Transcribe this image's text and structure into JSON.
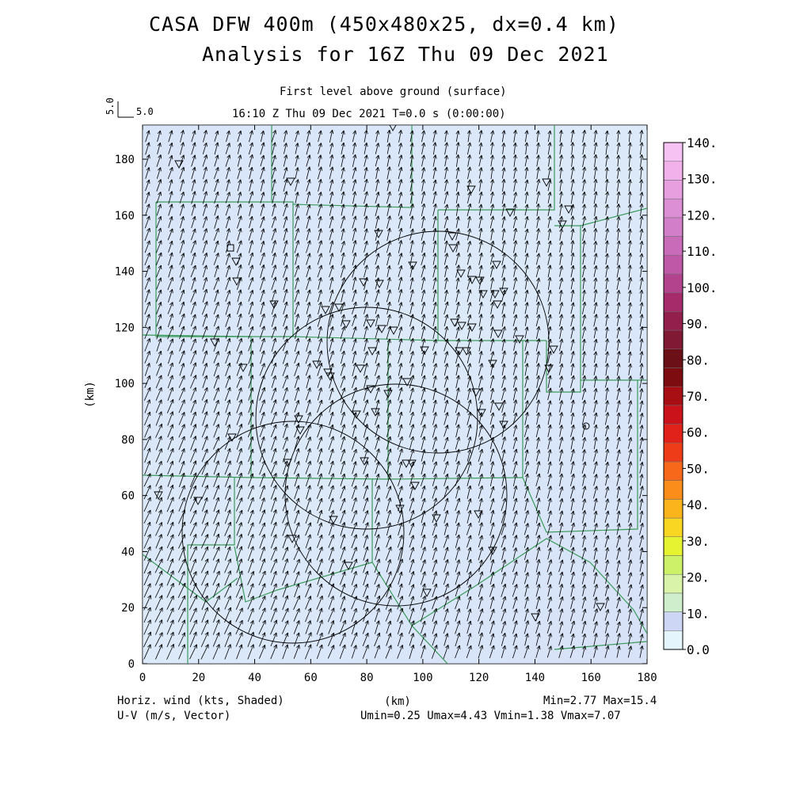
{
  "title_line1": "CASA DFW 400m (450x480x25, dx=0.4 km)",
  "title_line2": "Analysis for 16Z Thu 09 Dec 2021",
  "subtitle": "First level above ground (surface)",
  "time_line": "16:10 Z Thu 09 Dec 2021    T=0.0 s (0:00:00)",
  "vector_ref": {
    "label_h": "5.0",
    "label_v": "5.0"
  },
  "x_axis": {
    "label": "(km)",
    "ticks": [
      "0",
      "20",
      "40",
      "60",
      "80",
      "100",
      "120",
      "140",
      "160",
      "180"
    ],
    "range": [
      0,
      180
    ]
  },
  "y_axis": {
    "label": "(km)",
    "ticks": [
      "0",
      "20",
      "40",
      "60",
      "80",
      "100",
      "120",
      "140",
      "160",
      "180"
    ],
    "range": [
      0,
      192
    ]
  },
  "footer_left_1": "Horiz. wind (kts, Shaded)",
  "footer_left_2": "U-V (m/s, Vector)",
  "footer_stats_1": "Min=2.77 Max=15.4",
  "footer_stats_2": "Umin=0.25 Umax=4.43 Vmin=1.38 Vmax=7.07",
  "colorbar": {
    "labels": [
      "0.0",
      "10.",
      "20.",
      "30.",
      "40.",
      "50.",
      "60.",
      "70.",
      "80.",
      "90.",
      "100.",
      "110.",
      "120.",
      "130.",
      "140."
    ],
    "colors": [
      "#e4f6fb",
      "#cdd7f5",
      "#cfeecb",
      "#d9f3a9",
      "#cdf26a",
      "#e6f330",
      "#f8d622",
      "#fbb41c",
      "#fb8d1a",
      "#f8681a",
      "#ef3c18",
      "#e1221a",
      "#c9121a",
      "#a80f14",
      "#7c0c10",
      "#6b1016",
      "#801933",
      "#931f4d",
      "#a52b6b",
      "#b4438e",
      "#bf59a7",
      "#c96bb8",
      "#d27ec8",
      "#dc8fd4",
      "#e79fe0",
      "#f2b1ea",
      "#f6c2f3"
    ]
  },
  "accent": {
    "map_fill": "#d6e4f7",
    "boundary": "#3a9a5a",
    "vector": "#000000"
  }
}
